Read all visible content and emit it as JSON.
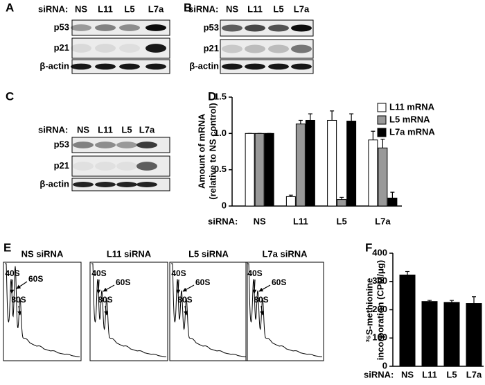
{
  "blots": [
    {
      "label": "A",
      "header": "siRNA:",
      "lanes": [
        "NS",
        "L11",
        "L5",
        "L7a"
      ],
      "rows": [
        "p53",
        "p21",
        "β-actin"
      ]
    },
    {
      "label": "B",
      "header": "siRNA:",
      "lanes": [
        "NS",
        "L11",
        "L5",
        "L7a"
      ],
      "rows": [
        "p53",
        "p21",
        "β-actin"
      ]
    },
    {
      "label": "C",
      "header": "siRNA:",
      "lanes": [
        "NS",
        "L11",
        "L5",
        "L7a"
      ],
      "rows": [
        "p53",
        "p21",
        "β-actin"
      ]
    }
  ],
  "profiles": {
    "label": "E",
    "panels": [
      {
        "title": "NS siRNA",
        "peaks": [
          "40S",
          "60S",
          "80S"
        ]
      },
      {
        "title": "L11 siRNA",
        "peaks": [
          "40S",
          "60S",
          "80S"
        ]
      },
      {
        "title": "L5 siRNA",
        "peaks": [
          "40S",
          "60S",
          "80S"
        ]
      },
      {
        "title": "L7a siRNA",
        "peaks": [
          "40S",
          "60S",
          "80S"
        ]
      }
    ]
  },
  "chart_data": [
    {
      "type": "bar",
      "panel_label": "D",
      "x_label": "siRNA:",
      "y_label": [
        "Amount of mRNA",
        "(relative to NS control)"
      ],
      "categories": [
        "NS",
        "L11",
        "L5",
        "L7a"
      ],
      "series": [
        {
          "name": "L11 mRNA",
          "color": "#ffffff",
          "values": [
            1.0,
            0.13,
            1.18,
            0.91
          ],
          "errors": [
            0,
            0.02,
            0.13,
            0.12
          ]
        },
        {
          "name": "L5 mRNA",
          "color": "#999999",
          "values": [
            1.0,
            1.13,
            0.09,
            0.8
          ],
          "errors": [
            0,
            0.05,
            0.03,
            0.12
          ]
        },
        {
          "name": "L7a mRNA",
          "color": "#000000",
          "values": [
            1.0,
            1.18,
            1.17,
            0.11
          ],
          "errors": [
            0,
            0.09,
            0.1,
            0.08
          ]
        }
      ],
      "ylim": [
        0,
        1.5
      ],
      "yticks": [
        0,
        0.5,
        {
          "value": 1,
          "label": "1.0"
        },
        1.5
      ],
      "legend": "top-right"
    },
    {
      "type": "bar",
      "panel_label": "F",
      "x_label": "siRNA:",
      "y_label": [
        "³⁵S-methionine",
        "incorporation (CPM/μg)"
      ],
      "categories": [
        "NS",
        "L11",
        "L5",
        "L7a"
      ],
      "series": [
        {
          "name": "35S-methionine incorporation",
          "color": "#000000",
          "values": [
            323,
            229,
            226,
            222
          ],
          "errors": [
            12,
            4,
            7,
            24
          ]
        }
      ],
      "ylim": [
        0,
        400
      ],
      "yticks": [
        0,
        100,
        200,
        300,
        400
      ]
    }
  ]
}
